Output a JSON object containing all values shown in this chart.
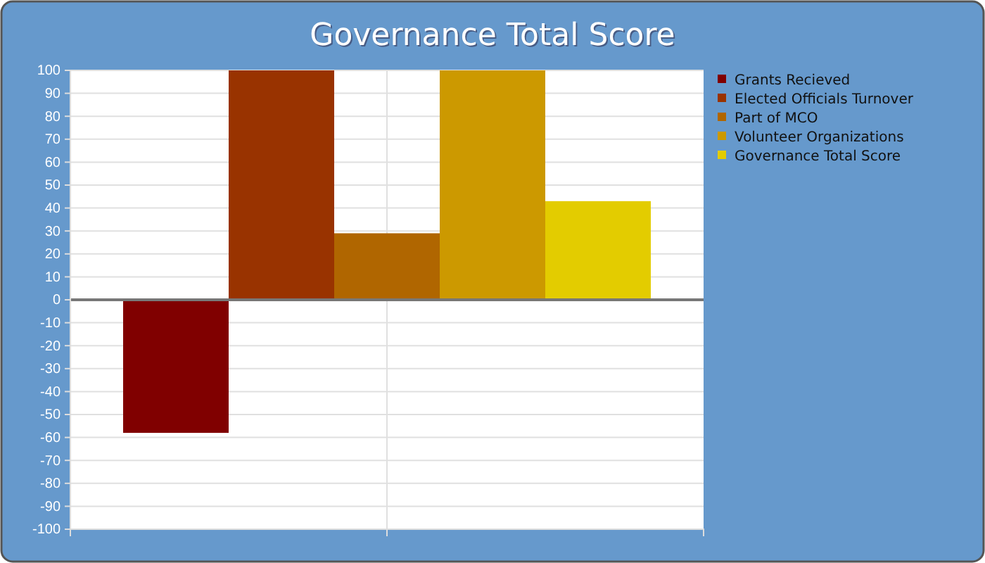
{
  "chart_data": {
    "type": "bar",
    "title": "Governance Total Score",
    "categories": [
      null
    ],
    "series": [
      {
        "name": "Grants Recieved",
        "color": "#800000",
        "values": [
          -58
        ]
      },
      {
        "name": "Elected Officials Turnover",
        "color": "#993300",
        "values": [
          100
        ]
      },
      {
        "name": "Part of MCO",
        "color": "#b06600",
        "values": [
          29
        ]
      },
      {
        "name": "Volunteer Organizations",
        "color": "#cc9900",
        "values": [
          100
        ]
      },
      {
        "name": "Governance Total Score",
        "color": "#e3cc00",
        "values": [
          43
        ]
      }
    ],
    "ylim": [
      -100,
      100
    ],
    "yticks": [
      -100,
      -90,
      -80,
      -70,
      -60,
      -50,
      -40,
      -30,
      -20,
      -10,
      0,
      10,
      20,
      30,
      40,
      50,
      60,
      70,
      80,
      90,
      100
    ],
    "grid": true,
    "legend": "right"
  }
}
